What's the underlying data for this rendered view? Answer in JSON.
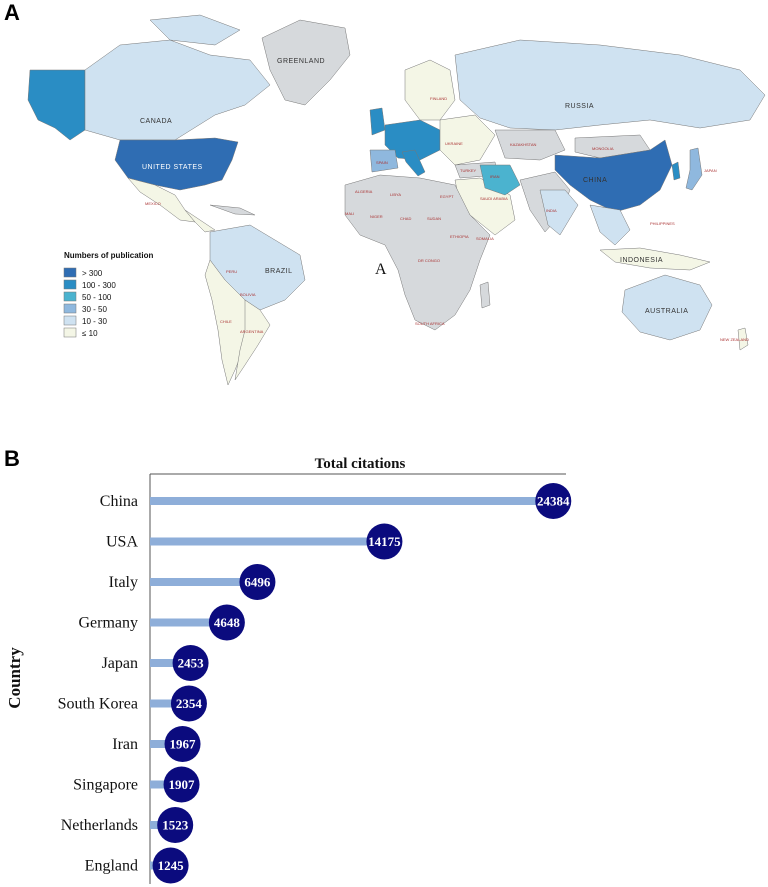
{
  "panels": {
    "a_label": "A",
    "b_label": "B"
  },
  "map": {
    "legend_title": "Numbers of publication",
    "legend": [
      {
        "label": "> 300",
        "color": "#2f6db3"
      },
      {
        "label": "100 - 300",
        "color": "#2a8dc4"
      },
      {
        "label": "50 - 100",
        "color": "#4bb3cf"
      },
      {
        "label": "30 - 50",
        "color": "#8fb8de"
      },
      {
        "label": "10 - 30",
        "color": "#cfe2f1"
      },
      {
        "label": "≤ 10",
        "color": "#f4f6e6"
      }
    ],
    "inline_marker": "A",
    "country_labels": {
      "greenland": "GREENLAND",
      "canada": "CANADA",
      "usa": "UNITED STATES",
      "mexico": "MEXICO",
      "brazil": "BRAZIL",
      "peru": "PERU",
      "bolivia": "BOLIVIA",
      "chile": "CHILE",
      "argentina": "ARGENTINA",
      "russia": "RUSSIA",
      "kazakhstan": "KAZAKHSTAN",
      "mongolia": "MONGOLIA",
      "china": "CHINA",
      "iran": "IRAN",
      "turkey": "TURKEY",
      "india": "INDIA",
      "algeria": "ALGERIA",
      "libya": "LIBYA",
      "egypt": "EGYPT",
      "mali": "MALI",
      "niger": "NIGER",
      "chad": "CHAD",
      "sudan": "SUDAN",
      "ethiopia": "ETHIOPIA",
      "drcongo": "DR CONGO",
      "somalia": "SOMALIA",
      "south_africa": "SOUTH AFRICA",
      "saudi": "SAUDI ARABIA",
      "indonesia": "INDONESIA",
      "australia": "AUSTRALIA",
      "new_zealand": "NEW ZEALAND",
      "japan": "JAPAN",
      "philippines": "PHILIPPINES",
      "finland": "FINLAND",
      "ukraine": "UKRAINE",
      "spain": "SPAIN"
    }
  },
  "chart_data": {
    "type": "bar",
    "title": "Total citations",
    "xlabel": "",
    "ylabel": "Country",
    "categories": [
      "China",
      "USA",
      "Italy",
      "Germany",
      "Japan",
      "South Korea",
      "Iran",
      "Singapore",
      "Netherlands",
      "England"
    ],
    "values": [
      24384,
      14175,
      6496,
      4648,
      2453,
      2354,
      1967,
      1907,
      1523,
      1245
    ],
    "xlim": [
      0,
      26000
    ],
    "bar_color": "#8eaed9",
    "marker_color": "#0b0b7e"
  }
}
